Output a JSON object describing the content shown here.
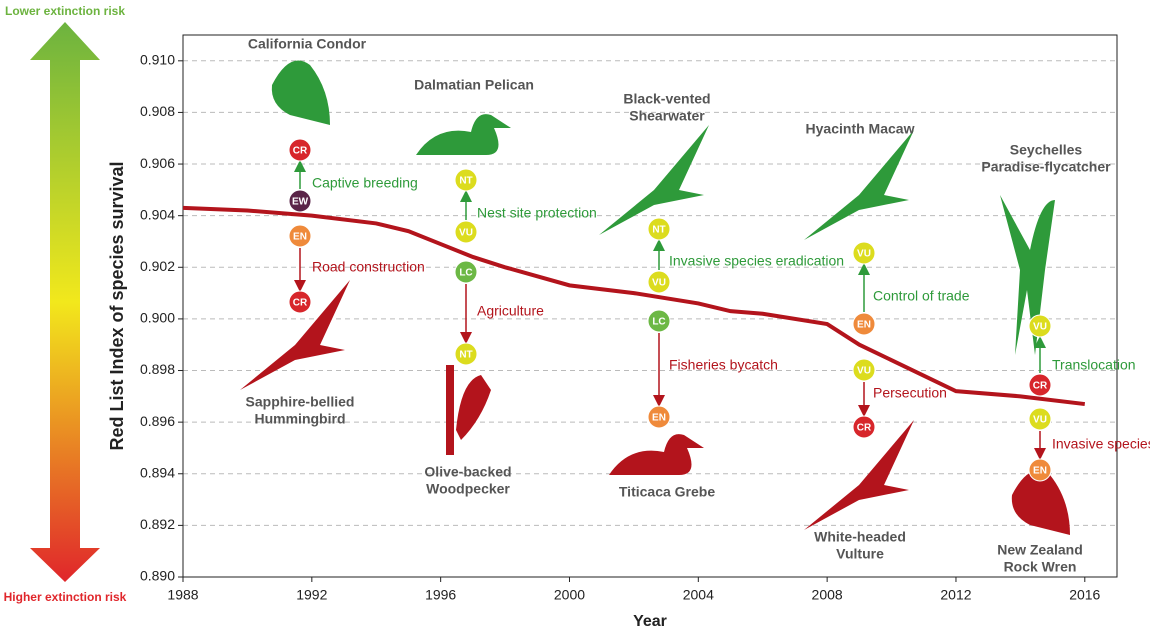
{
  "chart_data": {
    "type": "line",
    "y_label": "Red List Index of species survival",
    "x_label": "Year",
    "x": [
      1988,
      1990,
      1992,
      1994,
      1995,
      1996,
      1997,
      1998,
      2000,
      2002,
      2004,
      2005,
      2006,
      2008,
      2009,
      2010,
      2012,
      2014,
      2016
    ],
    "values": [
      0.9043,
      0.9042,
      0.904,
      0.9037,
      0.9034,
      0.9029,
      0.9024,
      0.902,
      0.9013,
      0.901,
      0.9006,
      0.9003,
      0.9002,
      0.8998,
      0.899,
      0.8984,
      0.8972,
      0.897,
      0.8967
    ],
    "color": "#b3141c",
    "xlim": [
      1988,
      2017
    ],
    "ylim": [
      0.89,
      0.911
    ],
    "xticks": [
      1988,
      1992,
      1996,
      2000,
      2004,
      2008,
      2012,
      2016
    ],
    "yticks": [
      {
        "value": 0.89,
        "label": "0.890"
      },
      {
        "value": 0.892,
        "label": "0.892"
      },
      {
        "value": 0.894,
        "label": "0.894"
      },
      {
        "value": 0.896,
        "label": "0.896"
      },
      {
        "value": 0.898,
        "label": "0.898"
      },
      {
        "value": 0.9,
        "label": "0.900"
      },
      {
        "value": 0.902,
        "label": "0.902"
      },
      {
        "value": 0.904,
        "label": "0.904"
      },
      {
        "value": 0.906,
        "label": "0.906"
      },
      {
        "value": 0.908,
        "label": "0.908"
      },
      {
        "value": 0.91,
        "label": "0.910"
      }
    ],
    "grid": true,
    "risk_scale": {
      "top": "Lower extinction risk",
      "bottom": "Higher extinction risk",
      "top_color": "#6cb33f",
      "bottom_color": "#e0262b"
    },
    "improve_color": "#2e9a3a",
    "decline_color": "#b3141c",
    "status_colors": {
      "CR": "#d7262b",
      "EN": "#ef8a3b",
      "VU": "#dcdc1e",
      "NT": "#dcdc1e",
      "LC": "#6cb845",
      "EW": "#5a2448"
    },
    "annotations": [
      {
        "name": [
          "California Condor"
        ],
        "from": "EW",
        "to": "CR",
        "driver": "Captive breeding",
        "direction": "improve"
      },
      {
        "name": [
          "Sapphire-bellied",
          "Hummingbird"
        ],
        "from": "EN",
        "to": "CR",
        "driver": "Road construction",
        "direction": "decline"
      },
      {
        "name": [
          "Dalmatian Pelican"
        ],
        "from": "VU",
        "to": "NT",
        "driver": "Nest site protection",
        "direction": "improve"
      },
      {
        "name": [
          "Olive-backed",
          "Woodpecker"
        ],
        "from": "LC",
        "to": "NT",
        "driver": "Agriculture",
        "direction": "decline"
      },
      {
        "name": [
          "Black-vented",
          "Shearwater"
        ],
        "from": "VU",
        "to": "NT",
        "driver": "Invasive species eradication",
        "direction": "improve"
      },
      {
        "name": [
          "Titicaca Grebe"
        ],
        "from": "LC",
        "to": "EN",
        "driver": "Fisheries bycatch",
        "direction": "decline"
      },
      {
        "name": [
          "Hyacinth Macaw"
        ],
        "from": "EN",
        "to": "VU",
        "driver": "Control of trade",
        "direction": "improve"
      },
      {
        "name": [
          "White-headed",
          "Vulture"
        ],
        "from": "VU",
        "to": "CR",
        "driver": "Persecution",
        "direction": "decline"
      },
      {
        "name": [
          "Seychelles",
          "Paradise-flycatcher"
        ],
        "from": "CR",
        "to": "VU",
        "driver": "Translocation",
        "direction": "improve"
      },
      {
        "name": [
          "New Zealand",
          "Rock Wren"
        ],
        "from": "VU",
        "to": "EN",
        "driver": "Invasive species",
        "direction": "decline"
      }
    ]
  }
}
